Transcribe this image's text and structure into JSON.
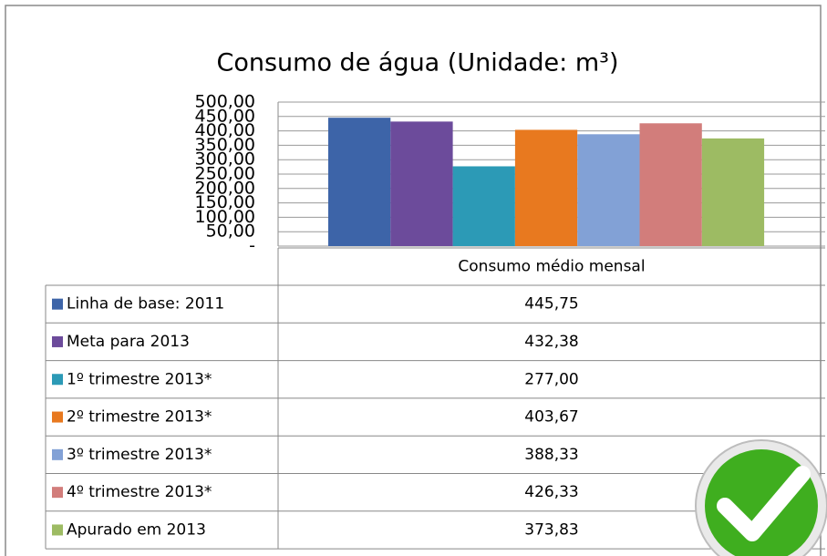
{
  "chart_data": {
    "type": "bar",
    "title": "Consumo de água (Unidade: m³)",
    "categories": [
      "Consumo médio mensal"
    ],
    "series": [
      {
        "name": "Linha de base: 2011",
        "color": "#3d64a8",
        "values": [
          445.75
        ],
        "value_labels": [
          "445,75"
        ]
      },
      {
        "name": "Meta para 2013",
        "color": "#6c4b9b",
        "values": [
          432.38
        ],
        "value_labels": [
          "432,38"
        ]
      },
      {
        "name": "1º trimestre 2013*",
        "color": "#2c9ab6",
        "values": [
          277.0
        ],
        "value_labels": [
          "277,00"
        ]
      },
      {
        "name": "2º trimestre 2013*",
        "color": "#e8791f",
        "values": [
          403.67
        ],
        "value_labels": [
          "403,67"
        ]
      },
      {
        "name": "3º trimestre 2013*",
        "color": "#82a1d6",
        "values": [
          388.33
        ],
        "value_labels": [
          "388,33"
        ]
      },
      {
        "name": "4º trimestre 2013*",
        "color": "#d27d7b",
        "values": [
          426.33
        ],
        "value_labels": [
          "426,33"
        ]
      },
      {
        "name": "Apurado em 2013",
        "color": "#9dbb63",
        "values": [
          373.83
        ],
        "value_labels": [
          "373,83"
        ]
      }
    ],
    "ylim": [
      0,
      500
    ],
    "yticks": [
      {
        "value": 0,
        "label": "-"
      },
      {
        "value": 50,
        "label": "50,00"
      },
      {
        "value": 100,
        "label": "100,00"
      },
      {
        "value": 150,
        "label": "150,00"
      },
      {
        "value": 200,
        "label": "200,00"
      },
      {
        "value": 250,
        "label": "250,00"
      },
      {
        "value": 300,
        "label": "300,00"
      },
      {
        "value": 350,
        "label": "350,00"
      },
      {
        "value": 400,
        "label": "400,00"
      },
      {
        "value": 450,
        "label": "450,00"
      },
      {
        "value": 500,
        "label": "500,00"
      }
    ],
    "grid": true
  }
}
